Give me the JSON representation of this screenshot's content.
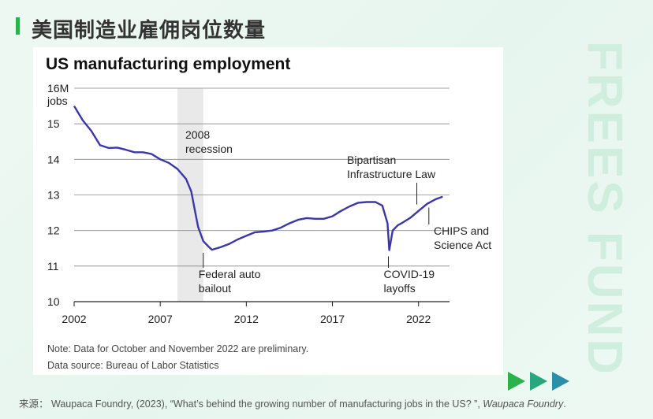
{
  "page": {
    "title": "美国制造业雇佣岗位数量",
    "watermark": "FREES FUND",
    "source_prefix": "来源：",
    "source_text": "Waupaca Foundry, (2023), “What’s behind the growing number of manufacturing jobs in the US? ”, ",
    "source_italic": "Waupaca Foundry",
    "source_end": "."
  },
  "colors": {
    "line": "#3b37a8",
    "accent_green": "#2bb24c",
    "arrow_teal": "#2a9d8f",
    "recession_band": "#e9e9e9"
  },
  "chart_data": {
    "type": "line",
    "title": "US manufacturing employment",
    "y_unit_label": "jobs",
    "xlim": [
      2002,
      2023.8
    ],
    "ylim": [
      10,
      16
    ],
    "x_ticks": [
      2002,
      2007,
      2012,
      2017,
      2022
    ],
    "y_ticks": [
      10,
      11,
      12,
      13,
      14,
      15,
      16
    ],
    "y_tick_labels": [
      "10",
      "11",
      "12",
      "13",
      "14",
      "15",
      "16M"
    ],
    "grid": "horizontal",
    "recession": {
      "start": 2008.0,
      "end": 2009.5,
      "label_lines": [
        "2008",
        "recession"
      ]
    },
    "series": [
      {
        "x": [
          2002.0,
          2002.5,
          2003.0,
          2003.5,
          2004.0,
          2004.5,
          2005.0,
          2005.5,
          2006.0,
          2006.5,
          2007.0,
          2007.5,
          2008.0,
          2008.5,
          2008.8,
          2009.0,
          2009.2,
          2009.5,
          2009.8,
          2010.0,
          2010.5,
          2011.0,
          2011.5,
          2012.0,
          2012.5,
          2013.0,
          2013.5,
          2014.0,
          2014.5,
          2015.0,
          2015.5,
          2016.0,
          2016.5,
          2017.0,
          2017.5,
          2018.0,
          2018.5,
          2019.0,
          2019.5,
          2019.9,
          2020.2,
          2020.3,
          2020.5,
          2020.8,
          2021.0,
          2021.5,
          2022.0,
          2022.5,
          2023.0,
          2023.4
        ],
        "y": [
          15.5,
          15.1,
          14.8,
          14.4,
          14.32,
          14.33,
          14.27,
          14.2,
          14.2,
          14.15,
          14.0,
          13.9,
          13.73,
          13.45,
          13.1,
          12.6,
          12.1,
          11.7,
          11.55,
          11.46,
          11.53,
          11.62,
          11.75,
          11.85,
          11.95,
          11.97,
          12.0,
          12.08,
          12.2,
          12.3,
          12.35,
          12.33,
          12.33,
          12.4,
          12.55,
          12.68,
          12.78,
          12.8,
          12.8,
          12.7,
          12.2,
          11.45,
          12.0,
          12.15,
          12.2,
          12.35,
          12.55,
          12.75,
          12.88,
          12.95
        ]
      }
    ],
    "annotations": [
      {
        "lines": [
          "Federal auto",
          "bailout"
        ],
        "x": 2009.5,
        "y": 11.55,
        "text_side": "below"
      },
      {
        "lines": [
          "Bipartisan",
          "Infrastructure Law"
        ],
        "x": 2021.9,
        "y": 12.6,
        "text_side": "above"
      },
      {
        "lines": [
          "COVID-19",
          "layoffs"
        ],
        "x": 2020.25,
        "y": 11.45,
        "text_side": "below"
      },
      {
        "lines": [
          "CHIPS and",
          "Science Act"
        ],
        "x": 2022.6,
        "y": 12.78,
        "text_side": "right"
      }
    ],
    "notes": [
      "Note: Data for October and November 2022 are preliminary.",
      "Data source: Bureau of Labor Statistics"
    ]
  }
}
